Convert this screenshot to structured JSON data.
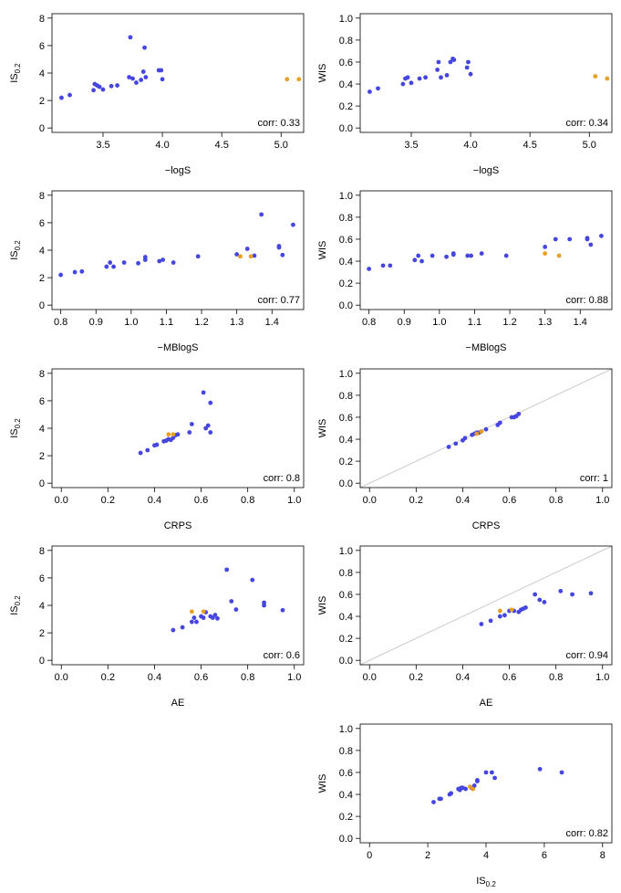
{
  "chart_data": [
    {
      "type": "scatter",
      "xlabel": "−logS",
      "ylabel": {
        "text": "IS",
        "sub": "0.2"
      },
      "annotation": "corr: 0.33",
      "diagonal": false,
      "xlim": [
        3.07,
        5.19
      ],
      "xticks": [
        3.5,
        {
          "value": 4,
          "label": "4.0"
        },
        4.5,
        {
          "value": 5,
          "label": "5.0"
        }
      ],
      "ylim": [
        -0.32,
        8.32
      ],
      "yticks": [
        0,
        2,
        4,
        6,
        8
      ],
      "series": [
        {
          "color": "#4545e0",
          "x": [
            3.15,
            3.22,
            3.42,
            3.43,
            3.45,
            3.47,
            3.5,
            3.57,
            3.62,
            3.72,
            3.73,
            3.75,
            3.78,
            3.82,
            3.84,
            3.85,
            3.86,
            3.97,
            3.99,
            4.0
          ],
          "values": [
            2.2,
            2.4,
            2.75,
            3.2,
            3.1,
            3.0,
            2.8,
            3.05,
            3.1,
            3.7,
            6.6,
            3.6,
            3.3,
            3.5,
            4.1,
            5.85,
            3.7,
            4.2,
            4.2,
            3.55
          ]
        },
        {
          "color": "#e8a020",
          "x": [
            5.05,
            5.15
          ],
          "values": [
            3.55,
            3.55
          ]
        }
      ]
    },
    {
      "type": "scatter",
      "xlabel": "−logS",
      "ylabel": "WIS",
      "annotation": "corr: 0.34",
      "diagonal": false,
      "xlim": [
        3.07,
        5.19
      ],
      "xticks": [
        3.5,
        {
          "value": 4,
          "label": "4.0"
        },
        4.5,
        {
          "value": 5,
          "label": "5.0"
        }
      ],
      "ylim": [
        -0.04,
        1.04
      ],
      "yticks": [
        {
          "value": 0,
          "label": "0.0"
        },
        0.2,
        0.4,
        0.6,
        0.8,
        {
          "value": 1,
          "label": "1.0"
        }
      ],
      "series": [
        {
          "color": "#4545e0",
          "x": [
            3.15,
            3.22,
            3.43,
            3.45,
            3.47,
            3.5,
            3.57,
            3.62,
            3.72,
            3.73,
            3.75,
            3.8,
            3.83,
            3.85,
            3.86,
            3.97,
            3.98,
            4.0
          ],
          "values": [
            0.33,
            0.36,
            0.4,
            0.45,
            0.46,
            0.41,
            0.45,
            0.46,
            0.53,
            0.6,
            0.46,
            0.48,
            0.6,
            0.63,
            0.62,
            0.55,
            0.6,
            0.49
          ]
        },
        {
          "color": "#e8a020",
          "x": [
            5.05,
            5.15
          ],
          "values": [
            0.47,
            0.45
          ]
        }
      ]
    },
    {
      "type": "scatter",
      "xlabel": "−MBlogS",
      "ylabel": {
        "text": "IS",
        "sub": "0.2"
      },
      "annotation": "corr: 0.77",
      "diagonal": false,
      "xlim": [
        0.775,
        1.49
      ],
      "xticks": [
        0.8,
        0.9,
        {
          "value": 1,
          "label": "1.0"
        },
        1.1,
        1.2,
        1.3,
        1.4
      ],
      "ylim": [
        -0.32,
        8.32
      ],
      "yticks": [
        0,
        2,
        4,
        6,
        8
      ],
      "series": [
        {
          "color": "#4545e0",
          "x": [
            0.8,
            0.84,
            0.86,
            0.93,
            0.94,
            0.95,
            0.98,
            1.02,
            1.04,
            1.04,
            1.08,
            1.09,
            1.12,
            1.19,
            1.3,
            1.33,
            1.35,
            1.37,
            1.42,
            1.42,
            1.43,
            1.46
          ],
          "values": [
            2.2,
            2.4,
            2.45,
            2.8,
            3.1,
            2.8,
            3.1,
            3.05,
            3.3,
            3.5,
            3.2,
            3.3,
            3.1,
            3.55,
            3.7,
            4.1,
            3.6,
            6.6,
            4.2,
            4.3,
            3.65,
            5.85
          ]
        },
        {
          "color": "#e8a020",
          "x": [
            1.31,
            1.34
          ],
          "values": [
            3.55,
            3.55
          ]
        }
      ]
    },
    {
      "type": "scatter",
      "xlabel": "−MBlogS",
      "ylabel": "WIS",
      "annotation": "corr: 0.88",
      "diagonal": false,
      "xlim": [
        0.775,
        1.49
      ],
      "xticks": [
        0.8,
        0.9,
        {
          "value": 1,
          "label": "1.0"
        },
        1.1,
        1.2,
        1.3,
        1.4
      ],
      "ylim": [
        -0.04,
        1.04
      ],
      "yticks": [
        {
          "value": 0,
          "label": "0.0"
        },
        0.2,
        0.4,
        0.6,
        0.8,
        {
          "value": 1,
          "label": "1.0"
        }
      ],
      "series": [
        {
          "color": "#4545e0",
          "x": [
            0.8,
            0.84,
            0.86,
            0.93,
            0.94,
            0.95,
            0.98,
            1.02,
            1.04,
            1.04,
            1.08,
            1.09,
            1.12,
            1.19,
            1.3,
            1.33,
            1.37,
            1.42,
            1.42,
            1.43,
            1.46
          ],
          "values": [
            0.33,
            0.36,
            0.36,
            0.41,
            0.45,
            0.4,
            0.45,
            0.44,
            0.47,
            0.46,
            0.45,
            0.45,
            0.47,
            0.45,
            0.53,
            0.6,
            0.6,
            0.6,
            0.61,
            0.55,
            0.63
          ]
        },
        {
          "color": "#e8a020",
          "x": [
            1.3,
            1.34
          ],
          "values": [
            0.47,
            0.45
          ]
        }
      ]
    },
    {
      "type": "scatter",
      "xlabel": "CRPS",
      "ylabel": {
        "text": "IS",
        "sub": "0.2"
      },
      "annotation": "corr: 0.8",
      "diagonal": false,
      "xlim": [
        -0.04,
        1.04
      ],
      "xticks": [
        {
          "value": 0,
          "label": "0.0"
        },
        0.2,
        0.4,
        0.6,
        0.8,
        {
          "value": 1,
          "label": "1.0"
        }
      ],
      "ylim": [
        -0.32,
        8.32
      ],
      "yticks": [
        0,
        2,
        4,
        6,
        8
      ],
      "series": [
        {
          "color": "#4545e0",
          "x": [
            0.34,
            0.37,
            0.4,
            0.41,
            0.44,
            0.45,
            0.46,
            0.47,
            0.48,
            0.49,
            0.5,
            0.55,
            0.56,
            0.61,
            0.62,
            0.63,
            0.64,
            0.64
          ],
          "values": [
            2.2,
            2.4,
            2.75,
            2.8,
            3.05,
            3.1,
            3.2,
            3.15,
            3.3,
            3.5,
            3.55,
            3.7,
            4.3,
            6.6,
            4.0,
            4.2,
            5.85,
            3.7
          ]
        },
        {
          "color": "#e8a020",
          "x": [
            0.46,
            0.48
          ],
          "values": [
            3.55,
            3.55
          ]
        }
      ]
    },
    {
      "type": "scatter",
      "xlabel": "CRPS",
      "ylabel": "WIS",
      "annotation": "corr: 1",
      "diagonal": true,
      "xlim": [
        -0.04,
        1.04
      ],
      "xticks": [
        {
          "value": 0,
          "label": "0.0"
        },
        0.2,
        0.4,
        0.6,
        0.8,
        {
          "value": 1,
          "label": "1.0"
        }
      ],
      "ylim": [
        -0.04,
        1.04
      ],
      "yticks": [
        {
          "value": 0,
          "label": "0.0"
        },
        0.2,
        0.4,
        0.6,
        0.8,
        {
          "value": 1,
          "label": "1.0"
        }
      ],
      "series": [
        {
          "color": "#4545e0",
          "x": [
            0.34,
            0.37,
            0.4,
            0.41,
            0.44,
            0.45,
            0.46,
            0.47,
            0.48,
            0.5,
            0.55,
            0.56,
            0.61,
            0.62,
            0.63,
            0.64
          ],
          "values": [
            0.33,
            0.36,
            0.39,
            0.41,
            0.44,
            0.45,
            0.46,
            0.46,
            0.47,
            0.49,
            0.53,
            0.55,
            0.6,
            0.6,
            0.61,
            0.63
          ]
        },
        {
          "color": "#e8a020",
          "x": [
            0.46,
            0.48
          ],
          "values": [
            0.45,
            0.47
          ]
        }
      ]
    },
    {
      "type": "scatter",
      "xlabel": "AE",
      "ylabel": {
        "text": "IS",
        "sub": "0.2"
      },
      "annotation": "corr: 0.6",
      "diagonal": false,
      "xlim": [
        -0.04,
        1.04
      ],
      "xticks": [
        {
          "value": 0,
          "label": "0.0"
        },
        0.2,
        0.4,
        0.6,
        0.8,
        {
          "value": 1,
          "label": "1.0"
        }
      ],
      "ylim": [
        -0.32,
        8.32
      ],
      "yticks": [
        0,
        2,
        4,
        6,
        8
      ],
      "series": [
        {
          "color": "#4545e0",
          "x": [
            0.48,
            0.52,
            0.56,
            0.57,
            0.58,
            0.6,
            0.61,
            0.62,
            0.64,
            0.65,
            0.66,
            0.67,
            0.71,
            0.73,
            0.75,
            0.82,
            0.87,
            0.87,
            0.95
          ],
          "values": [
            2.2,
            2.4,
            2.8,
            3.1,
            2.8,
            3.2,
            3.1,
            3.5,
            3.2,
            3.1,
            3.3,
            3.05,
            6.6,
            4.3,
            3.7,
            5.85,
            4.2,
            4.0,
            3.65
          ]
        },
        {
          "color": "#e8a020",
          "x": [
            0.56,
            0.61
          ],
          "values": [
            3.55,
            3.55
          ]
        }
      ]
    },
    {
      "type": "scatter",
      "xlabel": "AE",
      "ylabel": "WIS",
      "annotation": "corr: 0.94",
      "diagonal": true,
      "xlim": [
        -0.04,
        1.04
      ],
      "xticks": [
        {
          "value": 0,
          "label": "0.0"
        },
        0.2,
        0.4,
        0.6,
        0.8,
        {
          "value": 1,
          "label": "1.0"
        }
      ],
      "ylim": [
        -0.04,
        1.04
      ],
      "yticks": [
        {
          "value": 0,
          "label": "0.0"
        },
        0.2,
        0.4,
        0.6,
        0.8,
        {
          "value": 1,
          "label": "1.0"
        }
      ],
      "series": [
        {
          "color": "#4545e0",
          "x": [
            0.48,
            0.52,
            0.56,
            0.58,
            0.6,
            0.62,
            0.64,
            0.65,
            0.66,
            0.67,
            0.71,
            0.73,
            0.75,
            0.82,
            0.87,
            0.95
          ],
          "values": [
            0.33,
            0.36,
            0.4,
            0.41,
            0.45,
            0.45,
            0.44,
            0.46,
            0.47,
            0.48,
            0.6,
            0.55,
            0.53,
            0.63,
            0.6,
            0.61
          ]
        },
        {
          "color": "#e8a020",
          "x": [
            0.56,
            0.61
          ],
          "values": [
            0.45,
            0.46
          ]
        }
      ]
    },
    {
      "type": "scatter",
      "xlabel": {
        "text": "IS",
        "sub": "0.2"
      },
      "ylabel": "WIS",
      "annotation": "corr: 0.82",
      "diagonal": false,
      "xlim": [
        -0.32,
        8.32
      ],
      "xticks": [
        0,
        2,
        4,
        6,
        8
      ],
      "ylim": [
        -0.04,
        1.04
      ],
      "yticks": [
        {
          "value": 0,
          "label": "0.0"
        },
        0.2,
        0.4,
        0.6,
        0.8,
        {
          "value": 1,
          "label": "1.0"
        }
      ],
      "series": [
        {
          "color": "#4545e0",
          "x": [
            2.2,
            2.4,
            2.45,
            2.75,
            2.8,
            3.05,
            3.1,
            3.15,
            3.2,
            3.3,
            3.5,
            3.55,
            3.6,
            3.7,
            4.0,
            4.2,
            4.3,
            3.7,
            5.85,
            6.6
          ],
          "values": [
            0.33,
            0.36,
            0.36,
            0.4,
            0.41,
            0.45,
            0.44,
            0.46,
            0.46,
            0.45,
            0.46,
            0.46,
            0.48,
            0.53,
            0.6,
            0.6,
            0.55,
            0.52,
            0.63,
            0.6
          ]
        },
        {
          "color": "#e8a020",
          "x": [
            3.55,
            3.45
          ],
          "values": [
            0.45,
            0.47
          ]
        }
      ]
    }
  ]
}
